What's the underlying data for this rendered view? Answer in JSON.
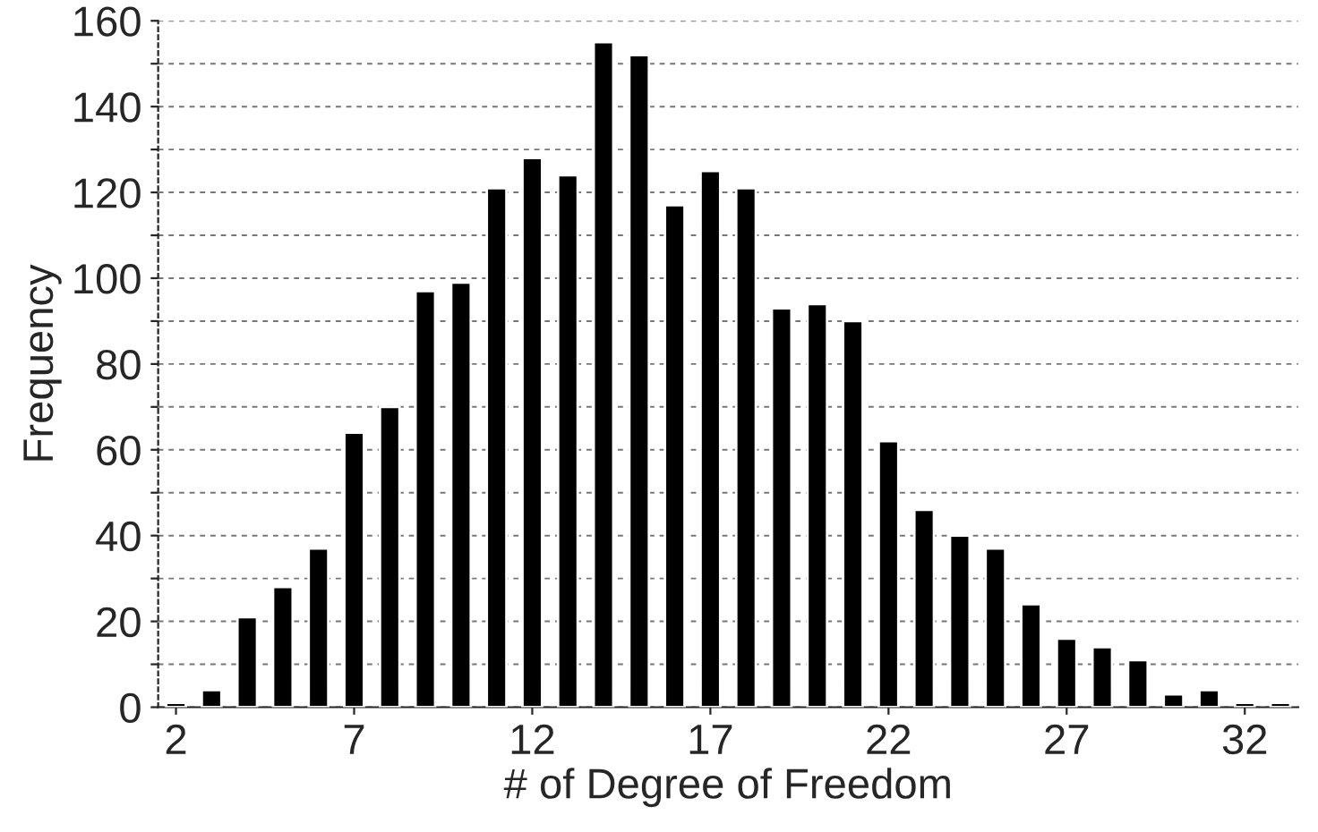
{
  "chart_data": {
    "type": "bar",
    "xlabel": "# of Degree of Freedom",
    "ylabel": "Frequency",
    "x": [
      2,
      3,
      4,
      5,
      6,
      7,
      8,
      9,
      10,
      11,
      12,
      13,
      14,
      15,
      16,
      17,
      18,
      19,
      20,
      21,
      22,
      23,
      24,
      25,
      26,
      27,
      28,
      29,
      30,
      31,
      32,
      33
    ],
    "values": [
      1,
      4,
      21,
      28,
      37,
      64,
      70,
      97,
      99,
      121,
      128,
      124,
      155,
      152,
      117,
      125,
      121,
      93,
      94,
      90,
      62,
      46,
      40,
      37,
      24,
      16,
      14,
      11,
      3,
      4,
      1,
      1
    ],
    "color": "#000000",
    "xlim": [
      1.5,
      33.5
    ],
    "xticks": [
      2,
      7,
      12,
      17,
      22,
      27,
      32
    ],
    "ylim": [
      0,
      160
    ],
    "yticks": [
      0,
      {
        "value": 10,
        "label": null
      },
      20,
      {
        "value": 30,
        "label": null
      },
      40,
      {
        "value": 50,
        "label": null
      },
      60,
      {
        "value": 70,
        "label": null
      },
      80,
      {
        "value": 90,
        "label": null
      },
      100,
      {
        "value": 110,
        "label": null
      },
      120,
      {
        "value": 130,
        "label": null
      },
      140,
      {
        "value": 150,
        "label": null
      },
      160
    ],
    "grid": "y"
  }
}
